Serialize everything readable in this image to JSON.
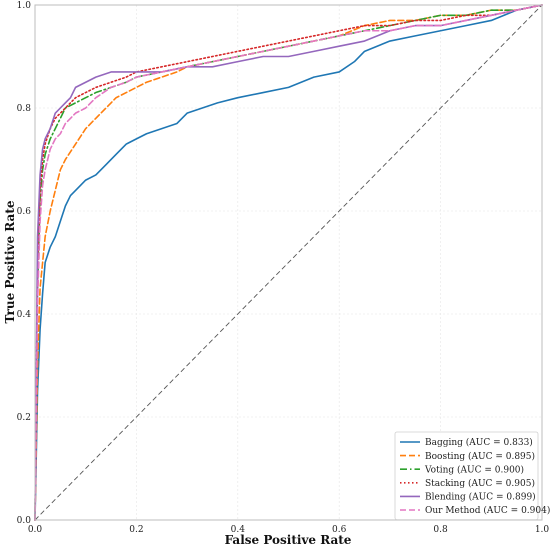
{
  "chart_data": {
    "type": "line",
    "title": "",
    "xlabel": "False Positive Rate",
    "ylabel": "True Positive Rate",
    "xlim": [
      0,
      1
    ],
    "ylim": [
      0,
      1
    ],
    "xticks": [
      "0.0",
      "0.2",
      "0.4",
      "0.6",
      "0.8",
      "1.0"
    ],
    "yticks": [
      "0.0",
      "0.2",
      "0.4",
      "0.6",
      "0.8",
      "1.0"
    ],
    "grid": true,
    "legend_position": "bottom-right",
    "reference_line": {
      "x": [
        0,
        1
      ],
      "y": [
        0,
        1
      ],
      "style": "dashed",
      "color": "#555555"
    },
    "series": [
      {
        "name": "Bagging (AUC = 0.833)",
        "color": "#1f77b4",
        "style": "solid",
        "x": [
          0,
          0.005,
          0.01,
          0.015,
          0.02,
          0.03,
          0.04,
          0.05,
          0.06,
          0.07,
          0.08,
          0.1,
          0.12,
          0.14,
          0.16,
          0.18,
          0.2,
          0.22,
          0.25,
          0.28,
          0.3,
          0.33,
          0.36,
          0.4,
          0.45,
          0.5,
          0.55,
          0.6,
          0.63,
          0.65,
          0.7,
          0.75,
          0.8,
          0.85,
          0.9,
          0.95,
          1.0
        ],
        "y": [
          0,
          0.25,
          0.37,
          0.44,
          0.5,
          0.53,
          0.55,
          0.58,
          0.61,
          0.63,
          0.64,
          0.66,
          0.67,
          0.69,
          0.71,
          0.73,
          0.74,
          0.75,
          0.76,
          0.77,
          0.79,
          0.8,
          0.81,
          0.82,
          0.83,
          0.84,
          0.86,
          0.87,
          0.89,
          0.91,
          0.93,
          0.94,
          0.95,
          0.96,
          0.97,
          0.99,
          1.0
        ]
      },
      {
        "name": "Boosting (AUC = 0.895)",
        "color": "#ff7f0e",
        "style": "dashed",
        "x": [
          0,
          0.005,
          0.01,
          0.02,
          0.03,
          0.04,
          0.05,
          0.06,
          0.08,
          0.1,
          0.12,
          0.14,
          0.16,
          0.18,
          0.2,
          0.22,
          0.25,
          0.28,
          0.3,
          0.35,
          0.4,
          0.45,
          0.5,
          0.55,
          0.6,
          0.65,
          0.7,
          0.75,
          0.8,
          0.85,
          0.9,
          0.95,
          1.0
        ],
        "y": [
          0,
          0.3,
          0.45,
          0.55,
          0.6,
          0.64,
          0.68,
          0.7,
          0.73,
          0.76,
          0.78,
          0.8,
          0.82,
          0.83,
          0.84,
          0.85,
          0.86,
          0.87,
          0.88,
          0.89,
          0.9,
          0.91,
          0.92,
          0.93,
          0.94,
          0.96,
          0.97,
          0.97,
          0.98,
          0.98,
          0.99,
          0.99,
          1.0
        ]
      },
      {
        "name": "Voting (AUC = 0.900)",
        "color": "#2ca02c",
        "style": "dashdot",
        "x": [
          0,
          0.005,
          0.01,
          0.015,
          0.02,
          0.03,
          0.04,
          0.05,
          0.06,
          0.08,
          0.1,
          0.12,
          0.15,
          0.18,
          0.2,
          0.25,
          0.3,
          0.35,
          0.4,
          0.45,
          0.5,
          0.55,
          0.6,
          0.65,
          0.7,
          0.75,
          0.8,
          0.85,
          0.9,
          0.95,
          1.0
        ],
        "y": [
          0,
          0.45,
          0.62,
          0.68,
          0.71,
          0.74,
          0.76,
          0.78,
          0.8,
          0.81,
          0.82,
          0.83,
          0.84,
          0.85,
          0.86,
          0.87,
          0.88,
          0.89,
          0.9,
          0.91,
          0.92,
          0.93,
          0.94,
          0.95,
          0.96,
          0.97,
          0.98,
          0.98,
          0.99,
          0.99,
          1.0
        ]
      },
      {
        "name": "Stacking (AUC = 0.905)",
        "color": "#d62728",
        "style": "dotted",
        "x": [
          0,
          0.005,
          0.01,
          0.015,
          0.02,
          0.03,
          0.04,
          0.05,
          0.06,
          0.08,
          0.1,
          0.12,
          0.15,
          0.18,
          0.2,
          0.25,
          0.3,
          0.35,
          0.4,
          0.45,
          0.5,
          0.55,
          0.6,
          0.65,
          0.7,
          0.75,
          0.8,
          0.85,
          0.9,
          0.95,
          1.0
        ],
        "y": [
          0,
          0.5,
          0.64,
          0.7,
          0.73,
          0.76,
          0.78,
          0.79,
          0.8,
          0.82,
          0.83,
          0.84,
          0.85,
          0.86,
          0.87,
          0.88,
          0.89,
          0.9,
          0.91,
          0.92,
          0.93,
          0.94,
          0.95,
          0.96,
          0.96,
          0.97,
          0.97,
          0.98,
          0.98,
          0.99,
          1.0
        ]
      },
      {
        "name": "Blending (AUC = 0.899)",
        "color": "#9467bd",
        "style": "solid",
        "x": [
          0,
          0.005,
          0.01,
          0.015,
          0.02,
          0.03,
          0.04,
          0.05,
          0.06,
          0.07,
          0.08,
          0.1,
          0.12,
          0.15,
          0.2,
          0.25,
          0.3,
          0.35,
          0.4,
          0.45,
          0.5,
          0.55,
          0.6,
          0.65,
          0.7,
          0.75,
          0.8,
          0.85,
          0.9,
          0.95,
          1.0
        ],
        "y": [
          0,
          0.55,
          0.67,
          0.72,
          0.74,
          0.76,
          0.79,
          0.8,
          0.81,
          0.82,
          0.84,
          0.85,
          0.86,
          0.87,
          0.87,
          0.87,
          0.88,
          0.88,
          0.89,
          0.9,
          0.9,
          0.91,
          0.92,
          0.93,
          0.95,
          0.96,
          0.96,
          0.97,
          0.98,
          0.99,
          1.0
        ]
      },
      {
        "name": "Our Method (AUC = 0.904)",
        "color": "#e377c2",
        "style": "dashed",
        "x": [
          0,
          0.005,
          0.01,
          0.015,
          0.02,
          0.03,
          0.04,
          0.05,
          0.06,
          0.08,
          0.1,
          0.12,
          0.15,
          0.18,
          0.2,
          0.25,
          0.3,
          0.35,
          0.4,
          0.45,
          0.5,
          0.55,
          0.6,
          0.65,
          0.7,
          0.75,
          0.8,
          0.85,
          0.9,
          0.95,
          1.0
        ],
        "y": [
          0,
          0.42,
          0.58,
          0.65,
          0.68,
          0.72,
          0.74,
          0.75,
          0.77,
          0.79,
          0.8,
          0.82,
          0.84,
          0.85,
          0.86,
          0.87,
          0.88,
          0.89,
          0.9,
          0.91,
          0.92,
          0.93,
          0.94,
          0.95,
          0.95,
          0.96,
          0.96,
          0.97,
          0.98,
          0.99,
          1.0
        ]
      }
    ]
  }
}
